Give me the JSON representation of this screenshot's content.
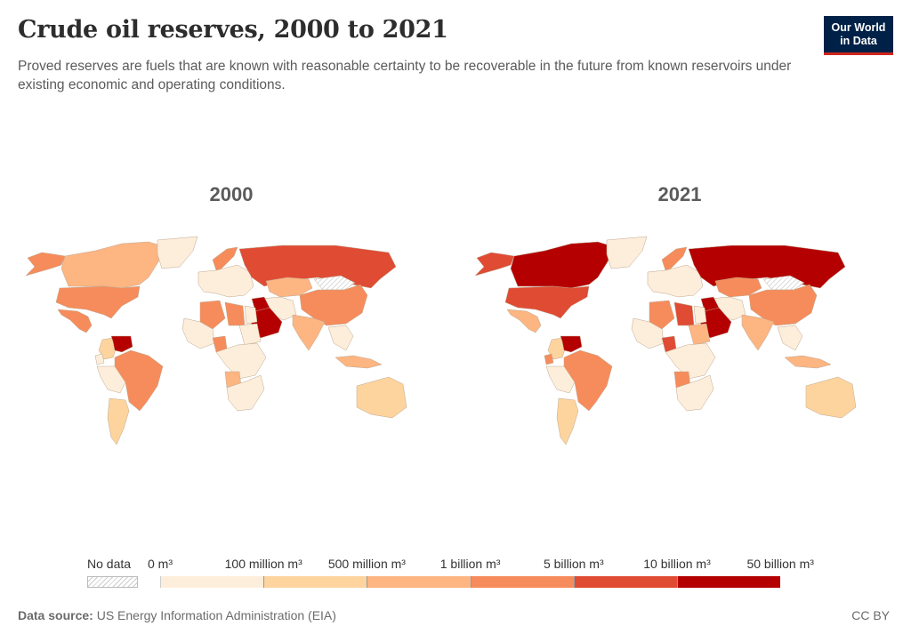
{
  "header": {
    "title": "Crude oil reserves, 2000 to 2021",
    "subtitle": "Proved reserves are fuels that are known with reasonable certainty to be recoverable in the future from known reservoirs under existing economic and operating conditions.",
    "logo_line1": "Our World",
    "logo_line2": "in Data"
  },
  "maps": [
    {
      "year": "2000"
    },
    {
      "year": "2021"
    }
  ],
  "legend": {
    "no_data_label": "No data",
    "no_data_color": "#ffffff",
    "bins": [
      {
        "from": "0 m³",
        "to": "100 million m³",
        "color": "#fdeedb"
      },
      {
        "from": "100 million m³",
        "to": "500 million m³",
        "color": "#fdd49e"
      },
      {
        "from": "500 million m³",
        "to": "1 billion m³",
        "color": "#fdb582"
      },
      {
        "from": "1 billion m³",
        "to": "5 billion m³",
        "color": "#f68c5b"
      },
      {
        "from": "5 billion m³",
        "to": "10 billion m³",
        "color": "#e04b34"
      },
      {
        "from": "10 billion m³",
        "to": "50 billion m³",
        "color": "#b40000"
      }
    ],
    "tick_labels": [
      "0 m³",
      "100 million m³",
      "500 million m³",
      "1 billion m³",
      "5 billion m³",
      "10 billion m³",
      "50 billion m³"
    ]
  },
  "chart_data": {
    "type": "choropleth",
    "title": "Crude oil reserves, 2000 to 2021",
    "unit": "m³",
    "bins": [
      "0–100 million",
      "100–500 million",
      "500 million–1 billion",
      "1–5 billion",
      "5–10 billion",
      "10–50 billion"
    ],
    "panels": [
      {
        "year": "2000",
        "regions": [
          {
            "name": "Canada",
            "bin": 2
          },
          {
            "name": "United States",
            "bin": 3
          },
          {
            "name": "Mexico",
            "bin": 3
          },
          {
            "name": "Alaska (US)",
            "bin": 3
          },
          {
            "name": "Greenland",
            "bin": 0
          },
          {
            "name": "Venezuela",
            "bin": 5
          },
          {
            "name": "Brazil",
            "bin": 3
          },
          {
            "name": "Argentina",
            "bin": 1
          },
          {
            "name": "Colombia",
            "bin": 1
          },
          {
            "name": "Russia",
            "bin": 4
          },
          {
            "name": "Kazakhstan",
            "bin": 2
          },
          {
            "name": "China",
            "bin": 3
          },
          {
            "name": "India",
            "bin": 2
          },
          {
            "name": "Saudi Arabia",
            "bin": 5
          },
          {
            "name": "Iran",
            "bin": 5
          },
          {
            "name": "Iraq",
            "bin": 5
          },
          {
            "name": "Algeria",
            "bin": 3
          },
          {
            "name": "Libya",
            "bin": 3
          },
          {
            "name": "Nigeria",
            "bin": 3
          },
          {
            "name": "Angola",
            "bin": 2
          },
          {
            "name": "Norway",
            "bin": 3
          },
          {
            "name": "Indonesia",
            "bin": 2
          },
          {
            "name": "Australia",
            "bin": 1
          },
          {
            "name": "Mongolia",
            "bin": -1
          }
        ]
      },
      {
        "year": "2021",
        "regions": [
          {
            "name": "Canada",
            "bin": 5
          },
          {
            "name": "United States",
            "bin": 4
          },
          {
            "name": "Mexico",
            "bin": 2
          },
          {
            "name": "Alaska (US)",
            "bin": 4
          },
          {
            "name": "Greenland",
            "bin": 0
          },
          {
            "name": "Venezuela",
            "bin": 5
          },
          {
            "name": "Brazil",
            "bin": 3
          },
          {
            "name": "Argentina",
            "bin": 1
          },
          {
            "name": "Colombia",
            "bin": 1
          },
          {
            "name": "Ecuador",
            "bin": 3
          },
          {
            "name": "Russia",
            "bin": 5
          },
          {
            "name": "Kazakhstan",
            "bin": 3
          },
          {
            "name": "China",
            "bin": 3
          },
          {
            "name": "India",
            "bin": 2
          },
          {
            "name": "Saudi Arabia",
            "bin": 5
          },
          {
            "name": "Iran",
            "bin": 5
          },
          {
            "name": "Iraq",
            "bin": 5
          },
          {
            "name": "Algeria",
            "bin": 3
          },
          {
            "name": "Libya",
            "bin": 4
          },
          {
            "name": "Nigeria",
            "bin": 4
          },
          {
            "name": "Angola",
            "bin": 3
          },
          {
            "name": "Sudan",
            "bin": 2
          },
          {
            "name": "Norway",
            "bin": 3
          },
          {
            "name": "Indonesia",
            "bin": 2
          },
          {
            "name": "Australia",
            "bin": 1
          },
          {
            "name": "Mongolia",
            "bin": -1
          }
        ]
      }
    ]
  },
  "footer": {
    "source_label": "Data source:",
    "source_text": "US Energy Information Administration (EIA)",
    "license": "CC BY"
  }
}
